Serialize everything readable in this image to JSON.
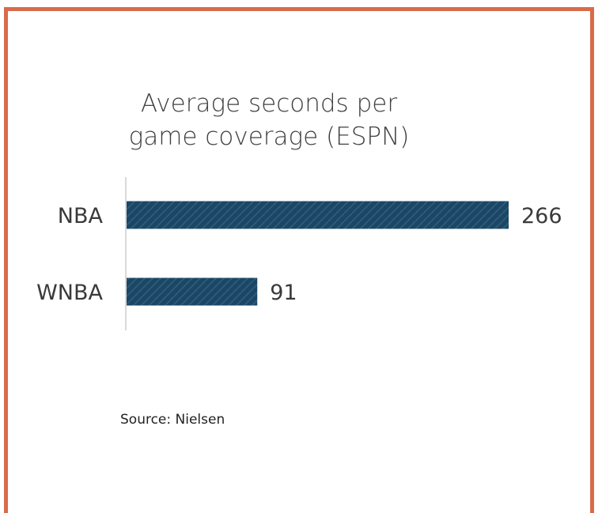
{
  "colors": {
    "border": "#d96b4a",
    "bar": "#1b4664",
    "bar_pattern": "#2e5b7a",
    "text": "#3a3a3a",
    "axis": "#d9d9d9"
  },
  "chart_data": {
    "type": "bar",
    "orientation": "horizontal",
    "title": "Average seconds per game coverage (ESPN)",
    "title_lines": [
      "Average seconds per",
      "game coverage (ESPN)"
    ],
    "categories": [
      "NBA",
      "WNBA"
    ],
    "values": [
      266,
      91
    ],
    "data_labels": [
      "266",
      "91"
    ],
    "xlabel": "",
    "ylabel": "",
    "xlim": [
      0,
      266
    ],
    "grid": false,
    "legend": "none"
  },
  "source": "Source: Nielsen"
}
